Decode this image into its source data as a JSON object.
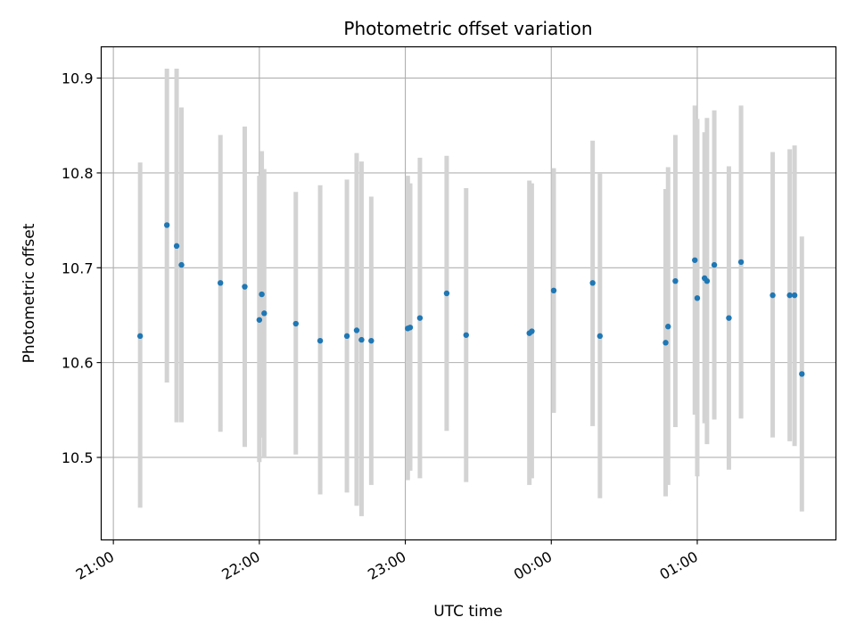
{
  "chart_data": {
    "type": "scatter",
    "title": "Photometric offset variation",
    "xlabel": "UTC time",
    "ylabel": "Photometric offset",
    "grid": true,
    "xlim": [
      "20:55",
      "01:57"
    ],
    "ylim": [
      10.413,
      10.933
    ],
    "x_ticks": [
      "21:00",
      "22:00",
      "23:00",
      "00:00",
      "01:00"
    ],
    "y_ticks": [
      "10.5",
      "10.6",
      "10.7",
      "10.8",
      "10.9"
    ],
    "colors": {
      "point": "#1f77b4",
      "errorbar": "#d3d3d3",
      "grid": "#b0b0b0"
    },
    "points": [
      {
        "x": "21:11",
        "y": 10.628,
        "low": 10.447,
        "high": 10.811
      },
      {
        "x": "21:22",
        "y": 10.745,
        "low": 10.579,
        "high": 10.91
      },
      {
        "x": "21:26",
        "y": 10.723,
        "low": 10.537,
        "high": 10.91
      },
      {
        "x": "21:28",
        "y": 10.703,
        "low": 10.537,
        "high": 10.869
      },
      {
        "x": "21:44",
        "y": 10.684,
        "low": 10.527,
        "high": 10.84
      },
      {
        "x": "21:54",
        "y": 10.68,
        "low": 10.511,
        "high": 10.849
      },
      {
        "x": "22:00",
        "y": 10.645,
        "low": 10.495,
        "high": 10.797
      },
      {
        "x": "22:01",
        "y": 10.672,
        "low": 10.521,
        "high": 10.823
      },
      {
        "x": "22:02",
        "y": 10.652,
        "low": 10.5,
        "high": 10.804
      },
      {
        "x": "22:15",
        "y": 10.641,
        "low": 10.503,
        "high": 10.78
      },
      {
        "x": "22:25",
        "y": 10.623,
        "low": 10.461,
        "high": 10.787
      },
      {
        "x": "22:36",
        "y": 10.628,
        "low": 10.463,
        "high": 10.793
      },
      {
        "x": "22:40",
        "y": 10.634,
        "low": 10.449,
        "high": 10.821
      },
      {
        "x": "22:42",
        "y": 10.624,
        "low": 10.438,
        "high": 10.812
      },
      {
        "x": "22:46",
        "y": 10.623,
        "low": 10.471,
        "high": 10.775
      },
      {
        "x": "23:01",
        "y": 10.636,
        "low": 10.476,
        "high": 10.797
      },
      {
        "x": "23:02",
        "y": 10.637,
        "low": 10.486,
        "high": 10.789
      },
      {
        "x": "23:06",
        "y": 10.647,
        "low": 10.478,
        "high": 10.816
      },
      {
        "x": "23:17",
        "y": 10.673,
        "low": 10.528,
        "high": 10.818
      },
      {
        "x": "23:25",
        "y": 10.629,
        "low": 10.474,
        "high": 10.784
      },
      {
        "x": "23:51",
        "y": 10.631,
        "low": 10.471,
        "high": 10.792
      },
      {
        "x": "23:52",
        "y": 10.633,
        "low": 10.478,
        "high": 10.789
      },
      {
        "x": "00:01",
        "y": 10.676,
        "low": 10.547,
        "high": 10.805
      },
      {
        "x": "00:17",
        "y": 10.684,
        "low": 10.533,
        "high": 10.834
      },
      {
        "x": "00:20",
        "y": 10.628,
        "low": 10.457,
        "high": 10.8
      },
      {
        "x": "00:47",
        "y": 10.621,
        "low": 10.459,
        "high": 10.783
      },
      {
        "x": "00:48",
        "y": 10.638,
        "low": 10.471,
        "high": 10.806
      },
      {
        "x": "00:51",
        "y": 10.686,
        "low": 10.532,
        "high": 10.84
      },
      {
        "x": "00:59",
        "y": 10.708,
        "low": 10.545,
        "high": 10.871
      },
      {
        "x": "01:00",
        "y": 10.668,
        "low": 10.48,
        "high": 10.857
      },
      {
        "x": "01:03",
        "y": 10.689,
        "low": 10.536,
        "high": 10.843
      },
      {
        "x": "01:04",
        "y": 10.686,
        "low": 10.514,
        "high": 10.858
      },
      {
        "x": "01:07",
        "y": 10.703,
        "low": 10.54,
        "high": 10.866
      },
      {
        "x": "01:13",
        "y": 10.647,
        "low": 10.487,
        "high": 10.807
      },
      {
        "x": "01:18",
        "y": 10.706,
        "low": 10.541,
        "high": 10.871
      },
      {
        "x": "01:31",
        "y": 10.671,
        "low": 10.521,
        "high": 10.822
      },
      {
        "x": "01:38",
        "y": 10.671,
        "low": 10.517,
        "high": 10.825
      },
      {
        "x": "01:40",
        "y": 10.671,
        "low": 10.512,
        "high": 10.829
      },
      {
        "x": "01:43",
        "y": 10.588,
        "low": 10.443,
        "high": 10.733
      }
    ]
  }
}
